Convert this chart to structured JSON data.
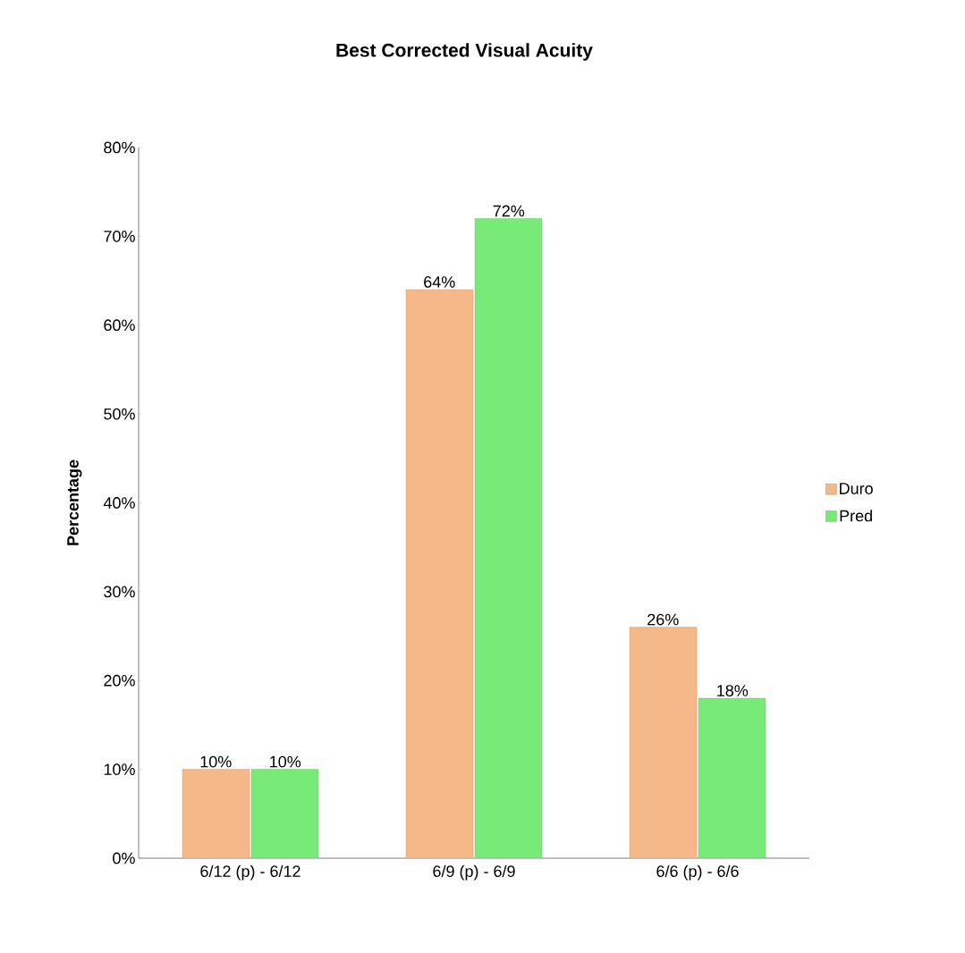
{
  "chart_data": {
    "type": "bar",
    "title": "Best Corrected Visual Acuity",
    "ylabel": "Percentage",
    "categories": [
      "6/12 (p) - 6/12",
      "6/9 (p) - 6/9",
      "6/6 (p) - 6/6"
    ],
    "series": [
      {
        "name": "Duro",
        "color": "#f5b888",
        "values": [
          10,
          64,
          26
        ],
        "value_labels": [
          "10%",
          "64%",
          "26%"
        ]
      },
      {
        "name": "Pred",
        "color": "#77ea77",
        "values": [
          10,
          72,
          18
        ],
        "value_labels": [
          "10%",
          "72%",
          "18%"
        ]
      }
    ],
    "ylim": [
      0,
      80
    ],
    "yticks": [
      {
        "value": 0,
        "label": "0%"
      },
      {
        "value": 10,
        "label": "10%"
      },
      {
        "value": 20,
        "label": "20%"
      },
      {
        "value": 30,
        "label": "30%"
      },
      {
        "value": 40,
        "label": "40%"
      },
      {
        "value": 50,
        "label": "50%"
      },
      {
        "value": 60,
        "label": "60%"
      },
      {
        "value": 70,
        "label": "70%"
      },
      {
        "value": 80,
        "label": "80%"
      }
    ],
    "grid": false,
    "legend": "right"
  }
}
